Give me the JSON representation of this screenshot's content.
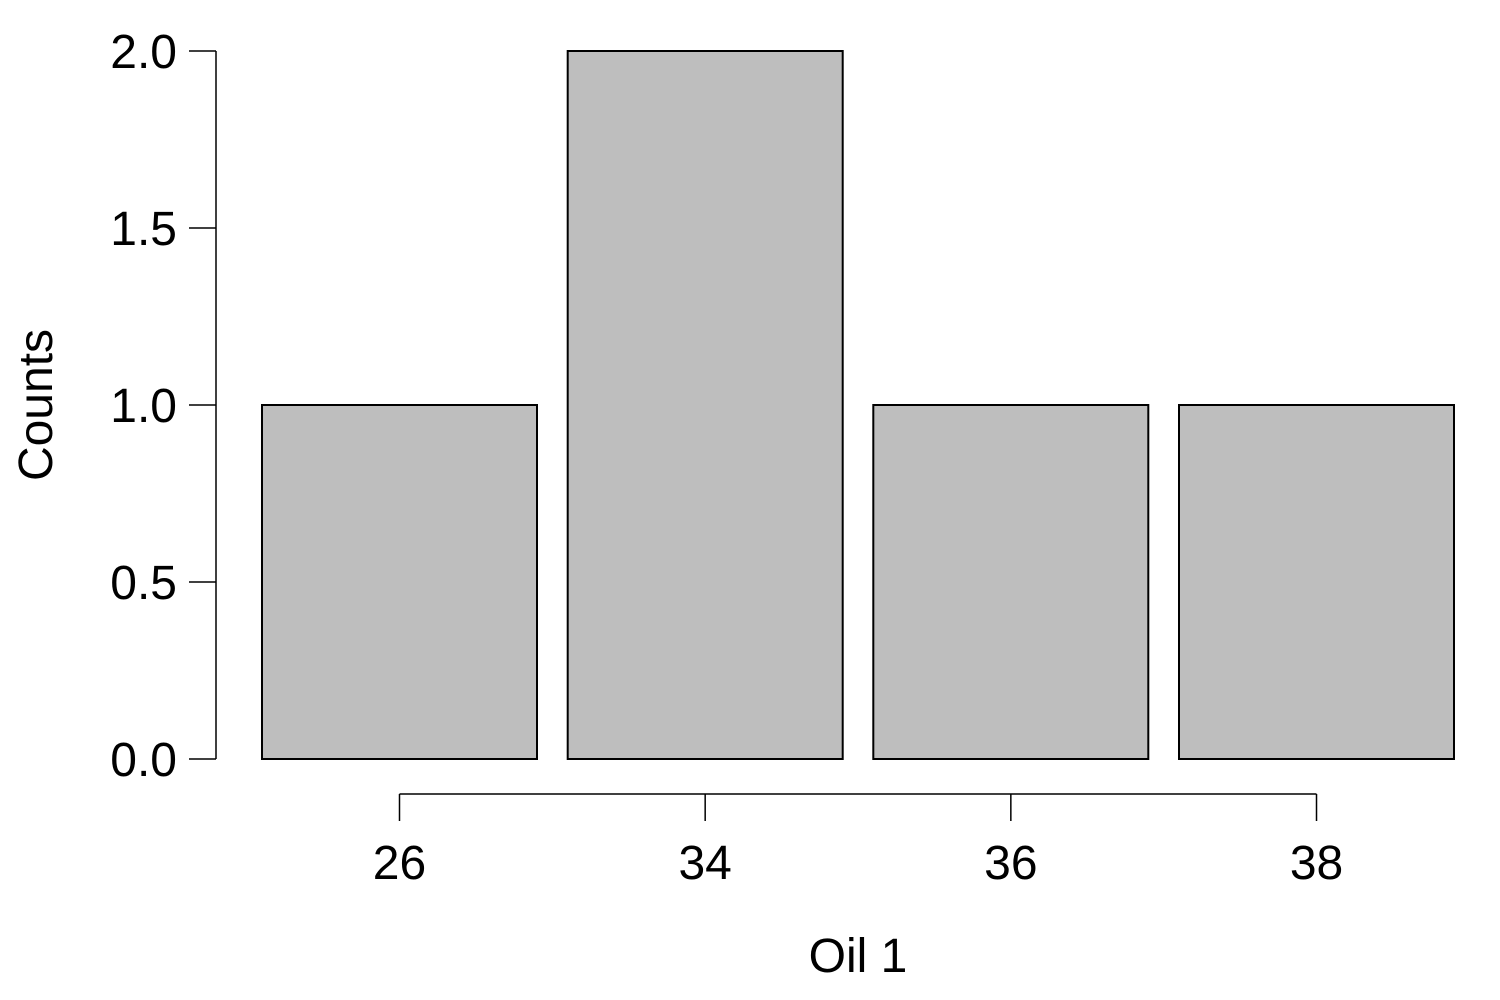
{
  "chart_data": {
    "type": "bar",
    "title": "",
    "xlabel": "Oil 1",
    "ylabel": "Counts",
    "categories": [
      "26",
      "34",
      "36",
      "38"
    ],
    "values": [
      1,
      2,
      1,
      1
    ],
    "ylim": [
      0,
      2
    ],
    "yticks": [
      "0.0",
      "0.5",
      "1.0",
      "1.5",
      "2.0"
    ],
    "grid": false,
    "legend": "none",
    "colors": {
      "bar_fill": "#bebebe",
      "bar_stroke": "#000000",
      "axis": "#000000"
    }
  }
}
